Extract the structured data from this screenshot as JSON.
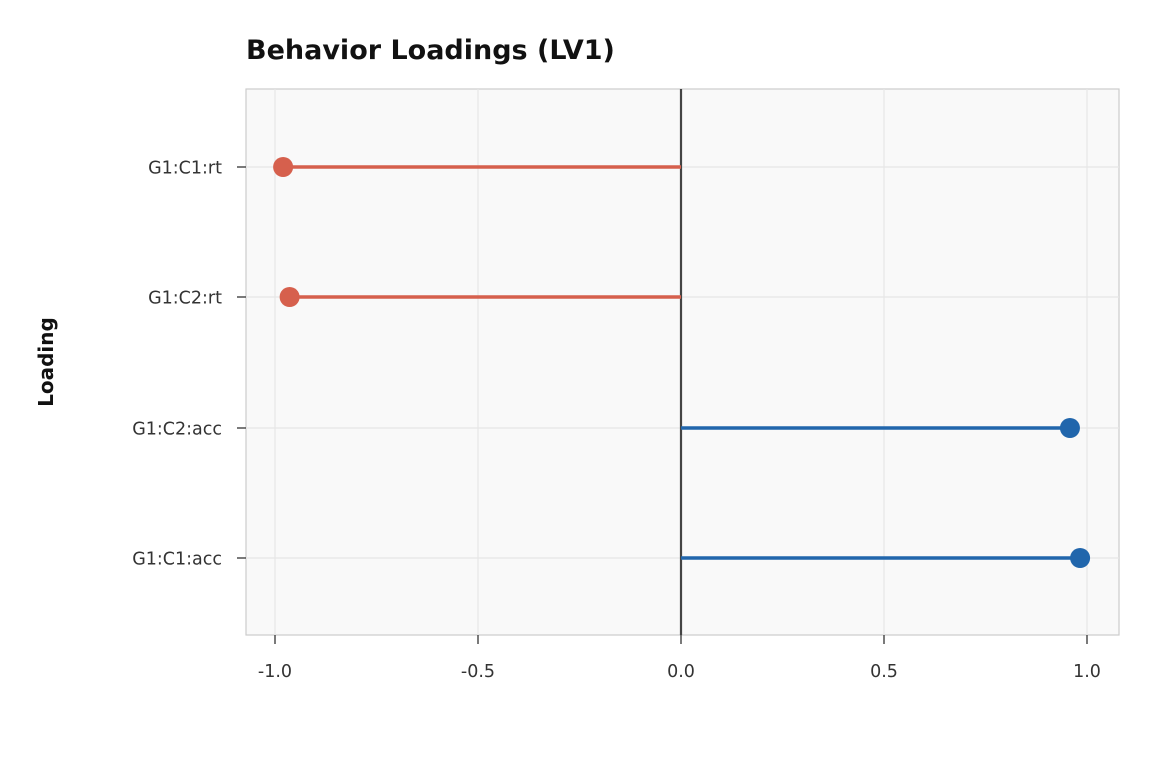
{
  "chart_data": {
    "type": "lollipop",
    "title": "Behavior Loadings (LV1)",
    "xlabel": "",
    "ylabel": "Loading",
    "categories": [
      "G1:C1:rt",
      "G1:C2:rt",
      "G1:C2:acc",
      "G1:C1:acc"
    ],
    "values": [
      -0.98,
      -0.964,
      0.958,
      0.983
    ],
    "xlim": [
      -1.07,
      1.08
    ],
    "xticks": [
      -1.0,
      -0.5,
      0.0,
      0.5,
      1.0
    ],
    "xtick_labels": [
      "-1.0",
      "-0.5",
      "0.0",
      "0.5",
      "1.0"
    ],
    "grid": true,
    "legend": null,
    "colors": {
      "negative": "#d6604d",
      "positive": "#2166ac",
      "zero_line": "#444444",
      "panel_bg": "#f9f9f9",
      "grid": "#e6e6e6",
      "frame": "#cccccc"
    }
  }
}
